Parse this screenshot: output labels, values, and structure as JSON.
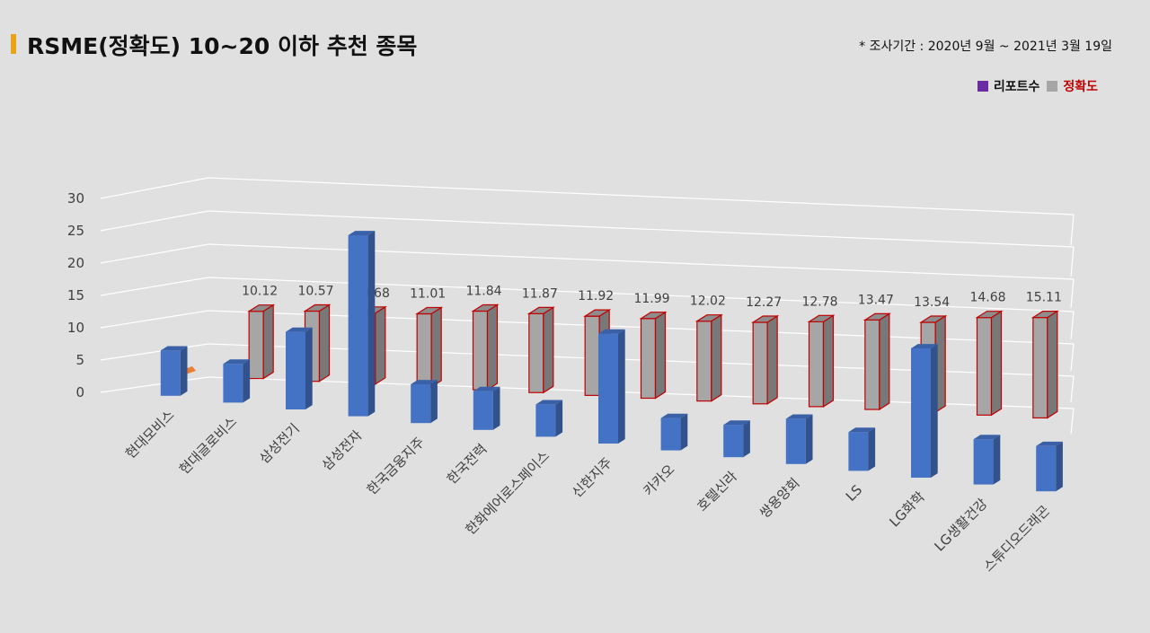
{
  "header": {
    "title": "RSME(정확도) 10~20 이하 추천 종목",
    "note": "* 조사기간 : 2020년 9월 ~ 2021년 3월 19일",
    "title_accent_color": "#e8a317"
  },
  "legend": {
    "items": [
      {
        "label": "리포트수",
        "swatch": "#6a2ca0",
        "text_color": "#111111"
      },
      {
        "label": "정확도",
        "swatch": "#a6a6a6",
        "text_color": "#c00000"
      }
    ]
  },
  "chart_data": {
    "type": "bar",
    "style": "3d-clustered-column",
    "categories": [
      "현대모비스",
      "현대글로비스",
      "삼성전기",
      "삼성전자",
      "한국금융지주",
      "한국전력",
      "한화에어로스페이스",
      "신한지주",
      "카카오",
      "호텔신라",
      "쌍용양회",
      "LS",
      "LG화학",
      "LG생활건강",
      "스튜디오드래곤"
    ],
    "series": [
      {
        "name": "리포트수",
        "color": "#4472c4",
        "values": [
          7,
          6,
          12,
          28,
          6,
          6,
          5,
          17,
          5,
          5,
          7,
          6,
          20,
          7,
          7
        ],
        "data_labels": false
      },
      {
        "name": "정확도",
        "color": "#a6a6a6",
        "border": "#c00000",
        "values": [
          10.12,
          10.57,
          10.68,
          11.01,
          11.84,
          11.87,
          11.92,
          11.99,
          12.02,
          12.27,
          12.78,
          13.47,
          13.54,
          14.68,
          15.11
        ],
        "data_labels": true
      }
    ],
    "ylim": [
      0,
      30
    ],
    "yticks": [
      0,
      5,
      10,
      15,
      20,
      25,
      30
    ],
    "grid": true,
    "legend_position": "top-right",
    "xlabel": "",
    "ylabel": ""
  }
}
